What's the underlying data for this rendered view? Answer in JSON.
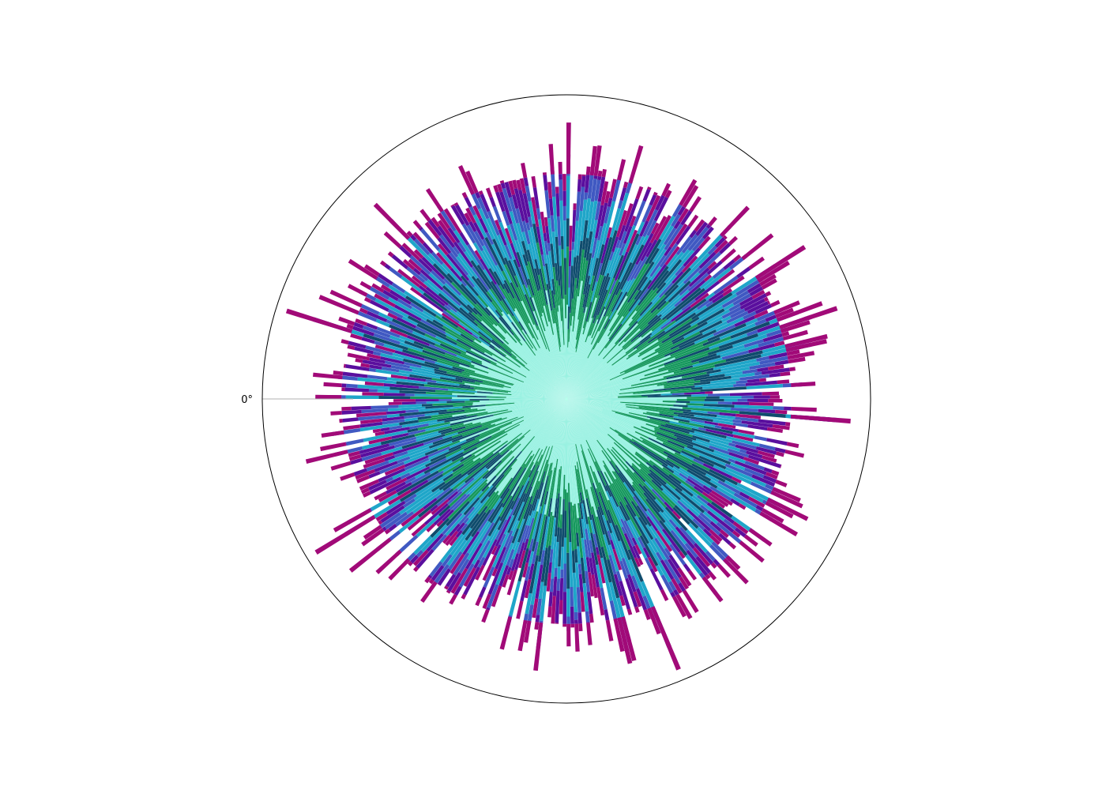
{
  "chart_data": {
    "type": "bar",
    "subtype": "polar-stacked-radial",
    "title": "",
    "angular_tick_labels": [
      "0°"
    ],
    "zero_direction": "left",
    "outer_circle": true,
    "grid": false,
    "legend": "none",
    "bin_count": 360,
    "radial_max": 1.0,
    "stack_colors": [
      "#96f1e1",
      "#15985d",
      "#0f4c6d",
      "#1fa6c9",
      "#4059c2",
      "#5a0f9e",
      "#a10a78"
    ],
    "series_mean_fraction": [
      0.26,
      0.12,
      0.1,
      0.09,
      0.06,
      0.07,
      0.06
    ],
    "reading_note_levels": {
      "inner_core_fraction_range": [
        0.15,
        0.4
      ],
      "total_extent_fraction_range": [
        0.58,
        0.72
      ]
    }
  }
}
